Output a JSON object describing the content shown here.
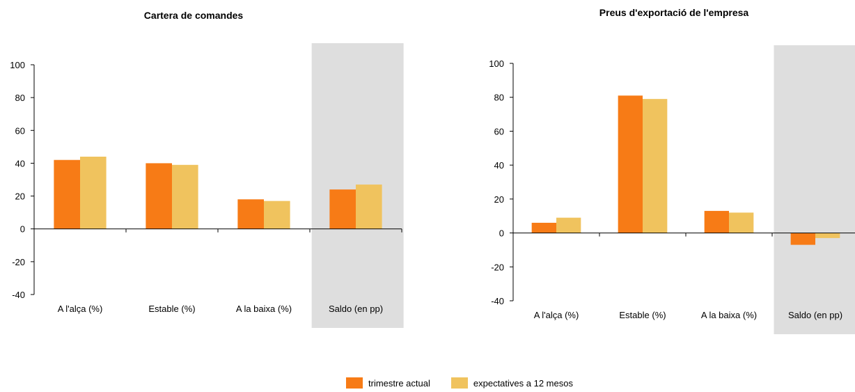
{
  "colors": {
    "current": "#F77B16",
    "expected": "#F0C35E",
    "shade": "#DEDEDE",
    "axis": "#000000"
  },
  "legend": {
    "current_label": "trimestre actual",
    "expected_label": "expectatives a 12 mesos"
  },
  "chart_data": [
    {
      "type": "bar",
      "title": "Cartera de comandes",
      "categories": [
        "A l'alça (%)",
        "Estable (%)",
        "A la baixa (%)",
        "Saldo (en pp)"
      ],
      "series": [
        {
          "name": "trimestre actual",
          "values": [
            42,
            40,
            18,
            24
          ]
        },
        {
          "name": "expectatives a 12 mesos",
          "values": [
            44,
            39,
            17,
            27
          ]
        }
      ],
      "ylim": [
        -40,
        100
      ],
      "yticks": [
        -40,
        -20,
        0,
        20,
        40,
        60,
        80,
        100
      ],
      "shaded_category": "Saldo (en pp)",
      "grid": false,
      "legend_position": "bottom"
    },
    {
      "type": "bar",
      "title": "Preus d'exportació de l'empresa",
      "categories": [
        "A l'alça (%)",
        "Estable (%)",
        "A la baixa (%)",
        "Saldo (en pp)"
      ],
      "series": [
        {
          "name": "trimestre actual",
          "values": [
            6,
            81,
            13,
            -7
          ]
        },
        {
          "name": "expectatives a 12 mesos",
          "values": [
            9,
            79,
            12,
            -3
          ]
        }
      ],
      "ylim": [
        -40,
        100
      ],
      "yticks": [
        -40,
        -20,
        0,
        20,
        40,
        60,
        80,
        100
      ],
      "shaded_category": "Saldo (en pp)",
      "grid": false,
      "legend_position": "bottom"
    }
  ]
}
